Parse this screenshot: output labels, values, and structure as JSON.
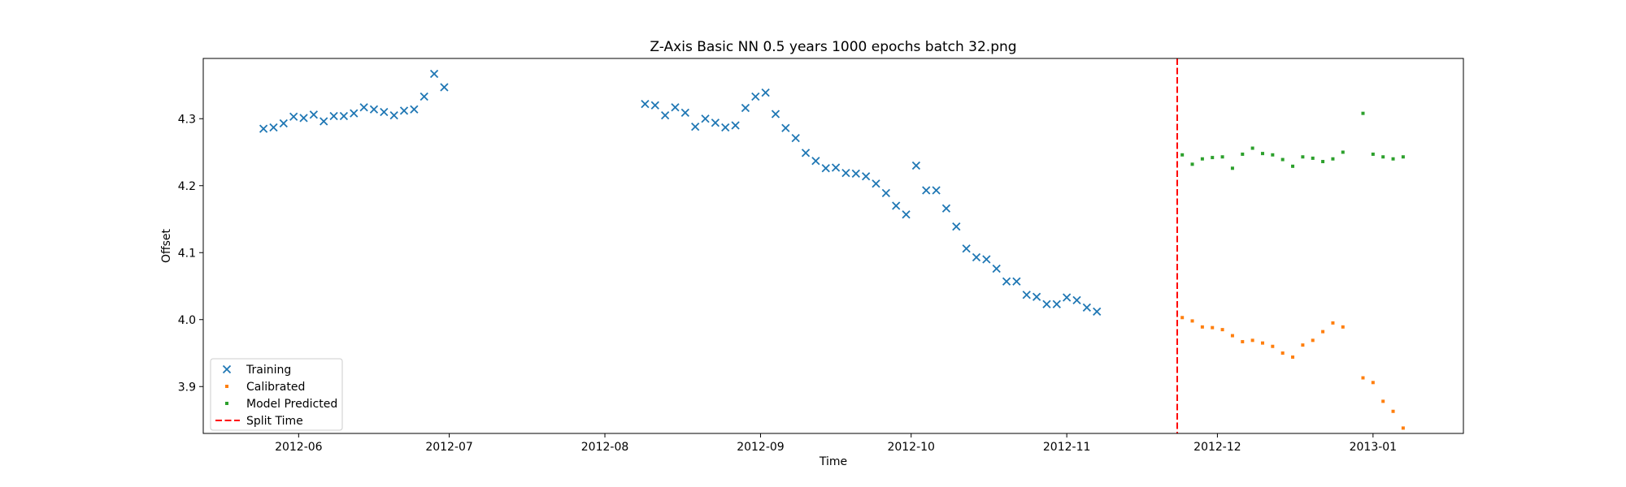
{
  "chart_data": {
    "type": "scatter",
    "title": "Z-Axis Basic NN 0.5 years 1000 epochs batch 32.png",
    "xlabel": "Time",
    "ylabel": "Offset",
    "x_type": "date",
    "xlim": [
      "2012-05-13",
      "2013-01-19"
    ],
    "ylim": [
      3.83,
      4.39
    ],
    "x_ticks": [
      "2012-06-01",
      "2012-07-01",
      "2012-08-01",
      "2012-09-01",
      "2012-10-01",
      "2012-11-01",
      "2012-12-01",
      "2013-01-01"
    ],
    "x_tick_labels": [
      "2012-06",
      "2012-07",
      "2012-08",
      "2012-09",
      "2012-10",
      "2012-11",
      "2012-12",
      "2013-01"
    ],
    "y_ticks": [
      3.9,
      4.0,
      4.1,
      4.2,
      4.3
    ],
    "y_tick_labels": [
      "3.9",
      "4.0",
      "4.1",
      "4.2",
      "4.3"
    ],
    "grid": false,
    "legend_position": "lower-left",
    "split_time": "2012-11-23",
    "series": [
      {
        "name": "Training",
        "marker": "x",
        "color": "#1f77b4",
        "points": [
          {
            "x": "2012-05-25",
            "y": 4.285
          },
          {
            "x": "2012-05-27",
            "y": 4.287
          },
          {
            "x": "2012-05-29",
            "y": 4.293
          },
          {
            "x": "2012-05-31",
            "y": 4.303
          },
          {
            "x": "2012-06-02",
            "y": 4.301
          },
          {
            "x": "2012-06-04",
            "y": 4.306
          },
          {
            "x": "2012-06-06",
            "y": 4.296
          },
          {
            "x": "2012-06-08",
            "y": 4.304
          },
          {
            "x": "2012-06-10",
            "y": 4.304
          },
          {
            "x": "2012-06-12",
            "y": 4.308
          },
          {
            "x": "2012-06-14",
            "y": 4.317
          },
          {
            "x": "2012-06-16",
            "y": 4.314
          },
          {
            "x": "2012-06-18",
            "y": 4.31
          },
          {
            "x": "2012-06-20",
            "y": 4.305
          },
          {
            "x": "2012-06-22",
            "y": 4.312
          },
          {
            "x": "2012-06-24",
            "y": 4.314
          },
          {
            "x": "2012-06-26",
            "y": 4.333
          },
          {
            "x": "2012-06-28",
            "y": 4.367
          },
          {
            "x": "2012-06-30",
            "y": 4.347
          },
          {
            "x": "2012-08-09",
            "y": 4.322
          },
          {
            "x": "2012-08-11",
            "y": 4.32
          },
          {
            "x": "2012-08-13",
            "y": 4.305
          },
          {
            "x": "2012-08-15",
            "y": 4.317
          },
          {
            "x": "2012-08-17",
            "y": 4.309
          },
          {
            "x": "2012-08-19",
            "y": 4.288
          },
          {
            "x": "2012-08-21",
            "y": 4.3
          },
          {
            "x": "2012-08-23",
            "y": 4.294
          },
          {
            "x": "2012-08-25",
            "y": 4.287
          },
          {
            "x": "2012-08-27",
            "y": 4.29
          },
          {
            "x": "2012-08-29",
            "y": 4.316
          },
          {
            "x": "2012-08-31",
            "y": 4.333
          },
          {
            "x": "2012-09-02",
            "y": 4.339
          },
          {
            "x": "2012-09-04",
            "y": 4.307
          },
          {
            "x": "2012-09-06",
            "y": 4.286
          },
          {
            "x": "2012-09-08",
            "y": 4.271
          },
          {
            "x": "2012-09-10",
            "y": 4.249
          },
          {
            "x": "2012-09-12",
            "y": 4.237
          },
          {
            "x": "2012-09-14",
            "y": 4.226
          },
          {
            "x": "2012-09-16",
            "y": 4.227
          },
          {
            "x": "2012-09-18",
            "y": 4.219
          },
          {
            "x": "2012-09-20",
            "y": 4.218
          },
          {
            "x": "2012-09-22",
            "y": 4.214
          },
          {
            "x": "2012-09-24",
            "y": 4.203
          },
          {
            "x": "2012-09-26",
            "y": 4.189
          },
          {
            "x": "2012-09-28",
            "y": 4.17
          },
          {
            "x": "2012-09-30",
            "y": 4.157
          },
          {
            "x": "2012-10-02",
            "y": 4.23
          },
          {
            "x": "2012-10-04",
            "y": 4.193
          },
          {
            "x": "2012-10-06",
            "y": 4.193
          },
          {
            "x": "2012-10-08",
            "y": 4.166
          },
          {
            "x": "2012-10-10",
            "y": 4.139
          },
          {
            "x": "2012-10-12",
            "y": 4.106
          },
          {
            "x": "2012-10-14",
            "y": 4.093
          },
          {
            "x": "2012-10-16",
            "y": 4.09
          },
          {
            "x": "2012-10-18",
            "y": 4.076
          },
          {
            "x": "2012-10-20",
            "y": 4.057
          },
          {
            "x": "2012-10-22",
            "y": 4.057
          },
          {
            "x": "2012-10-24",
            "y": 4.037
          },
          {
            "x": "2012-10-26",
            "y": 4.034
          },
          {
            "x": "2012-10-28",
            "y": 4.023
          },
          {
            "x": "2012-10-30",
            "y": 4.023
          },
          {
            "x": "2012-11-01",
            "y": 4.033
          },
          {
            "x": "2012-11-03",
            "y": 4.029
          },
          {
            "x": "2012-11-05",
            "y": 4.018
          },
          {
            "x": "2012-11-07",
            "y": 4.012
          }
        ]
      },
      {
        "name": "Calibrated",
        "marker": "dot",
        "color": "#ff7f0e",
        "points": [
          {
            "x": "2012-11-24",
            "y": 4.003
          },
          {
            "x": "2012-11-26",
            "y": 3.998
          },
          {
            "x": "2012-11-28",
            "y": 3.989
          },
          {
            "x": "2012-11-30",
            "y": 3.988
          },
          {
            "x": "2012-12-02",
            "y": 3.985
          },
          {
            "x": "2012-12-04",
            "y": 3.976
          },
          {
            "x": "2012-12-06",
            "y": 3.967
          },
          {
            "x": "2012-12-08",
            "y": 3.969
          },
          {
            "x": "2012-12-10",
            "y": 3.965
          },
          {
            "x": "2012-12-12",
            "y": 3.96
          },
          {
            "x": "2012-12-14",
            "y": 3.95
          },
          {
            "x": "2012-12-16",
            "y": 3.944
          },
          {
            "x": "2012-12-18",
            "y": 3.962
          },
          {
            "x": "2012-12-20",
            "y": 3.969
          },
          {
            "x": "2012-12-22",
            "y": 3.982
          },
          {
            "x": "2012-12-24",
            "y": 3.995
          },
          {
            "x": "2012-12-26",
            "y": 3.989
          },
          {
            "x": "2012-12-30",
            "y": 3.913
          },
          {
            "x": "2013-01-01",
            "y": 3.906
          },
          {
            "x": "2013-01-03",
            "y": 3.878
          },
          {
            "x": "2013-01-05",
            "y": 3.863
          },
          {
            "x": "2013-01-07",
            "y": 3.838
          }
        ]
      },
      {
        "name": "Model Predicted",
        "marker": "dot",
        "color": "#2ca02c",
        "points": [
          {
            "x": "2012-11-24",
            "y": 4.246
          },
          {
            "x": "2012-11-26",
            "y": 4.232
          },
          {
            "x": "2012-11-28",
            "y": 4.24
          },
          {
            "x": "2012-11-30",
            "y": 4.242
          },
          {
            "x": "2012-12-02",
            "y": 4.243
          },
          {
            "x": "2012-12-04",
            "y": 4.226
          },
          {
            "x": "2012-12-06",
            "y": 4.247
          },
          {
            "x": "2012-12-08",
            "y": 4.256
          },
          {
            "x": "2012-12-10",
            "y": 4.248
          },
          {
            "x": "2012-12-12",
            "y": 4.246
          },
          {
            "x": "2012-12-14",
            "y": 4.239
          },
          {
            "x": "2012-12-16",
            "y": 4.229
          },
          {
            "x": "2012-12-18",
            "y": 4.243
          },
          {
            "x": "2012-12-20",
            "y": 4.241
          },
          {
            "x": "2012-12-22",
            "y": 4.236
          },
          {
            "x": "2012-12-24",
            "y": 4.24
          },
          {
            "x": "2012-12-26",
            "y": 4.25
          },
          {
            "x": "2012-12-30",
            "y": 4.308
          },
          {
            "x": "2013-01-01",
            "y": 4.247
          },
          {
            "x": "2013-01-03",
            "y": 4.243
          },
          {
            "x": "2013-01-05",
            "y": 4.24
          },
          {
            "x": "2013-01-07",
            "y": 4.243
          }
        ]
      },
      {
        "name": "Split Time",
        "marker": "dashed-line",
        "color": "#ff0000",
        "points": []
      }
    ]
  }
}
